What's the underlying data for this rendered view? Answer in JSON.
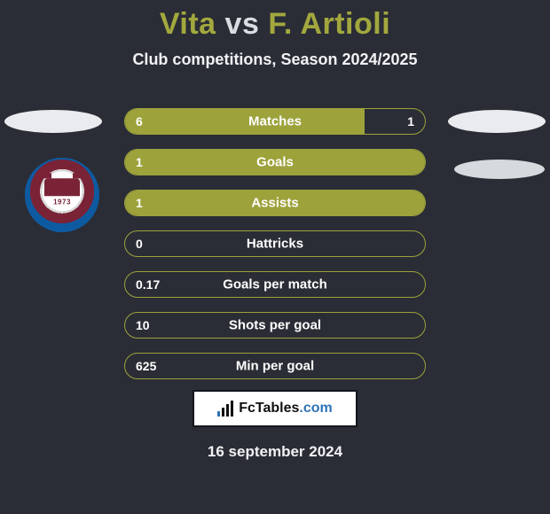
{
  "background_color": "#2a2d35",
  "title": {
    "player1": "Vita",
    "vs": "vs",
    "player2": "F. Artioli",
    "accent_color": "#a3a83e",
    "vs_color": "#d9dde2"
  },
  "subtitle": "Club competitions, Season 2024/2025",
  "badge": {
    "year": "1973"
  },
  "bars": {
    "track_color": "#2a2d35",
    "border_color": "#9da23b",
    "fill_color": "#9da23b",
    "text_color": "#ffffff",
    "rows": [
      {
        "label": "Matches",
        "left": "6",
        "right": "1",
        "fill_pct": 80,
        "show_right": true
      },
      {
        "label": "Goals",
        "left": "1",
        "right": "",
        "fill_pct": 100,
        "show_right": false
      },
      {
        "label": "Assists",
        "left": "1",
        "right": "",
        "fill_pct": 100,
        "show_right": false
      },
      {
        "label": "Hattricks",
        "left": "0",
        "right": "",
        "fill_pct": 0,
        "show_right": false
      },
      {
        "label": "Goals per match",
        "left": "0.17",
        "right": "",
        "fill_pct": 0,
        "show_right": false
      },
      {
        "label": "Shots per goal",
        "left": "10",
        "right": "",
        "fill_pct": 0,
        "show_right": false
      },
      {
        "label": "Min per goal",
        "left": "625",
        "right": "",
        "fill_pct": 0,
        "show_right": false
      }
    ]
  },
  "logo": {
    "text_main": "FcTables",
    "text_suffix": ".com"
  },
  "date": "16 september 2024"
}
